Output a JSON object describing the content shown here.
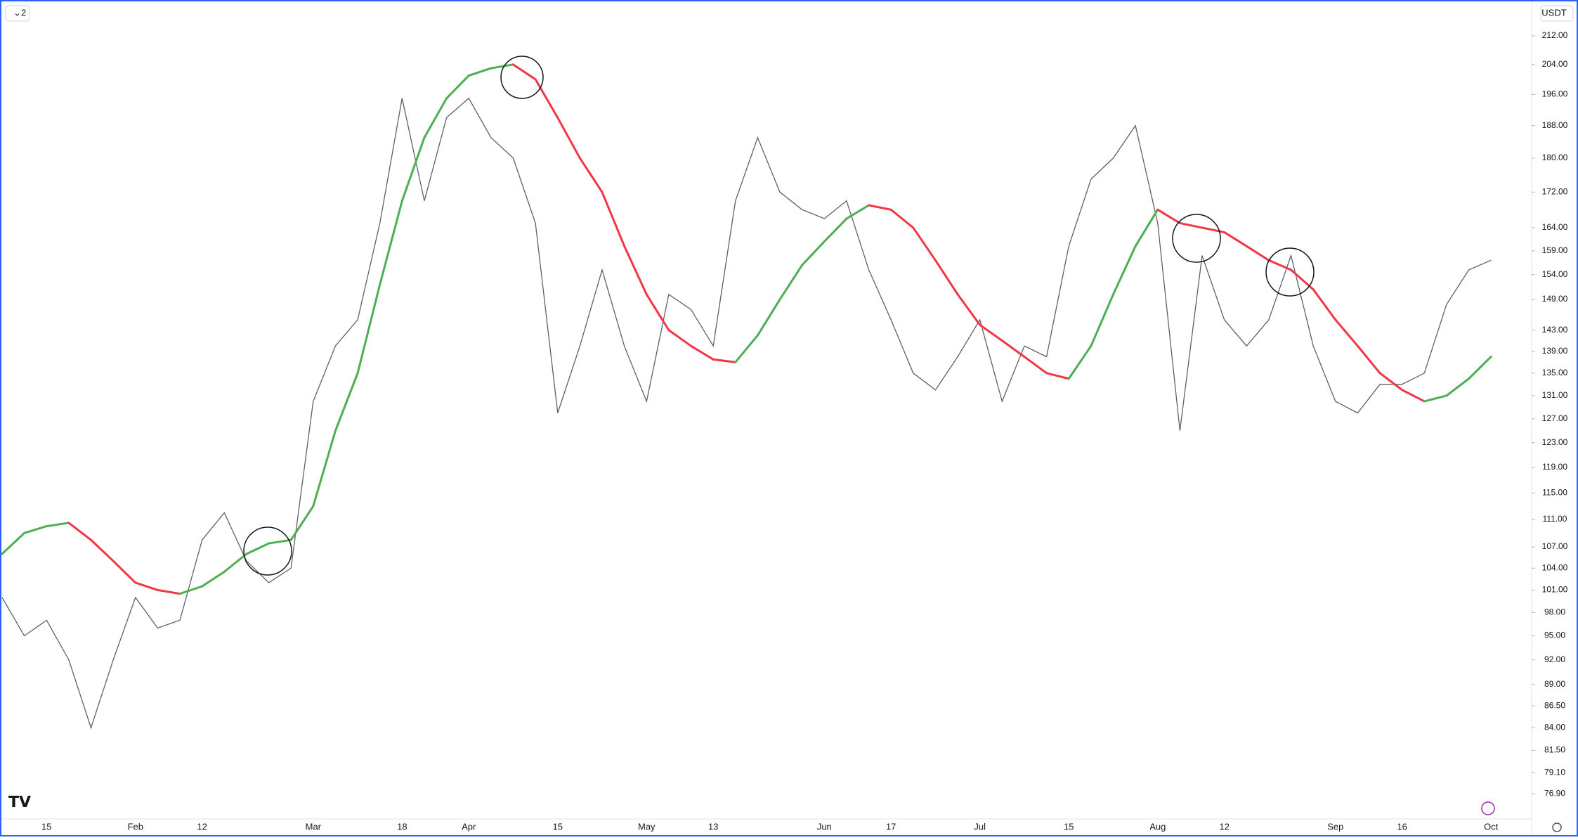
{
  "chart_data": {
    "type": "line",
    "pane_label": "2",
    "currency_label": "USDT",
    "log_scale": true,
    "categories": [
      null,
      null,
      "15",
      null,
      null,
      null,
      "Feb",
      null,
      null,
      "12",
      null,
      null,
      null,
      null,
      "Mar",
      null,
      null,
      null,
      "18",
      null,
      null,
      "Apr",
      null,
      null,
      null,
      "15",
      null,
      null,
      null,
      "May",
      null,
      null,
      "13",
      null,
      null,
      null,
      null,
      "Jun",
      null,
      null,
      "17",
      null,
      null,
      null,
      "Jul",
      null,
      null,
      null,
      "15",
      null,
      null,
      null,
      "Aug",
      null,
      null,
      "12",
      null,
      null,
      null,
      null,
      "Sep",
      null,
      null,
      "16",
      null,
      null,
      null,
      "Oct"
    ],
    "series": [
      {
        "color": "#5d606b",
        "values": [
          100,
          95,
          97,
          92,
          84,
          92,
          100,
          96,
          97,
          108,
          112,
          105,
          102,
          104,
          130,
          140,
          145,
          165,
          195,
          170,
          190,
          195,
          185,
          180,
          165,
          128,
          140,
          155,
          140,
          130,
          150,
          147,
          140,
          170,
          185,
          172,
          168,
          166,
          170,
          155,
          145,
          135,
          132,
          138,
          145,
          130,
          140,
          138,
          160,
          175,
          180,
          188,
          165,
          125,
          158,
          145,
          140,
          145,
          158,
          140,
          130,
          128,
          133,
          133,
          135,
          148,
          155,
          157
        ]
      },
      {
        "color_up": "#4caf50",
        "color_down": "#f23645",
        "values": [
          106,
          109,
          110,
          110.5,
          108,
          105,
          102,
          101,
          100.5,
          101.5,
          103.5,
          106,
          107.5,
          108,
          113,
          125,
          135,
          152,
          170,
          185,
          195,
          201,
          203,
          204,
          200,
          190,
          180,
          172,
          160,
          150,
          143,
          140,
          137.5,
          137,
          142,
          149,
          156,
          161,
          166,
          169,
          168,
          164,
          157,
          150,
          144,
          141,
          138,
          135,
          134,
          140,
          150,
          160,
          168,
          165,
          164,
          163,
          160,
          157,
          155,
          151,
          145,
          140,
          135,
          132,
          130,
          131,
          134,
          138
        ]
      }
    ],
    "ylim": [
      74.5,
      222.4
    ],
    "yticks": [
      {
        "value": 212,
        "label": "212.00"
      },
      {
        "value": 204,
        "label": "204.00"
      },
      {
        "value": 196,
        "label": "196.00"
      },
      {
        "value": 188,
        "label": "188.00"
      },
      {
        "value": 180,
        "label": "180.00"
      },
      {
        "value": 172,
        "label": "172.00"
      },
      {
        "value": 164,
        "label": "164.00"
      },
      {
        "value": 159,
        "label": "159.00"
      },
      {
        "value": 154,
        "label": "154.00"
      },
      {
        "value": 149,
        "label": "149.00"
      },
      {
        "value": 143,
        "label": "143.00"
      },
      {
        "value": 139,
        "label": "139.00"
      },
      {
        "value": 135,
        "label": "135.00"
      },
      {
        "value": 131,
        "label": "131.00"
      },
      {
        "value": 127,
        "label": "127.00"
      },
      {
        "value": 123,
        "label": "123.00"
      },
      {
        "value": 119,
        "label": "119.00"
      },
      {
        "value": 115,
        "label": "115.00"
      },
      {
        "value": 111,
        "label": "111.00"
      },
      {
        "value": 107,
        "label": "107.00"
      },
      {
        "value": 104,
        "label": "104.00"
      },
      {
        "value": 101,
        "label": "101.00"
      },
      {
        "value": 98,
        "label": "98.00"
      },
      {
        "value": 95,
        "label": "95.00"
      },
      {
        "value": 92,
        "label": "92.00"
      },
      {
        "value": 89,
        "label": "89.00"
      },
      {
        "value": 86.5,
        "label": "86.50"
      },
      {
        "value": 84,
        "label": "84.00"
      },
      {
        "value": 81.5,
        "label": "81.50"
      },
      {
        "value": 79.1,
        "label": "79.10"
      },
      {
        "value": 76.9,
        "label": "76.90"
      }
    ],
    "grid": false
  }
}
